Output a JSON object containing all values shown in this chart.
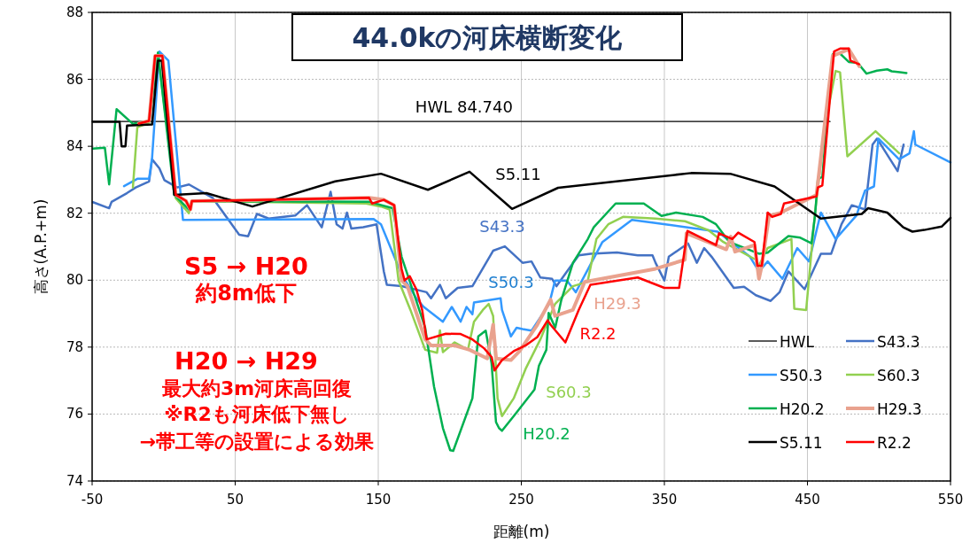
{
  "chart_data": {
    "type": "line",
    "title": "44.0kの河床横断変化",
    "xlabel": "距離(m)",
    "ylabel": "高さ(A.P.+m)",
    "xlim": [
      -50,
      550
    ],
    "xticks": [
      -50,
      50,
      150,
      250,
      350,
      450,
      550
    ],
    "ylim": [
      74,
      88
    ],
    "yticks": [
      74,
      76,
      78,
      80,
      82,
      84,
      86,
      88
    ],
    "grid": true,
    "legend": "bottom right",
    "annotations": [
      {
        "text": "HWL 84.740",
        "x": 210,
        "y": 84.74
      },
      "S5 → H20",
      "約8m低下",
      "H20 → H29",
      "最大約3m河床高回復",
      "※R2も河床低下無し",
      "→帯工等の設置による効果"
    ],
    "series": [
      {
        "name": "HWL",
        "color": "#000000",
        "x": [
          -50,
          465.8
        ],
        "values": [
          84.74,
          84.74
        ]
      },
      {
        "name": "S43.3",
        "color": "#4472c4",
        "x": [
          -49.4,
          -38.1,
          -36.4,
          -25.7,
          -19.5,
          -10.2,
          -8.1,
          -3,
          0.5,
          9.5,
          17.7,
          34.2,
          52.8,
          59,
          65.2,
          73.4,
          92,
          100.2,
          110.5,
          116.7,
          120.9,
          125,
          128.1,
          131.2,
          139.5,
          148.8,
          153.9,
          156,
          166.3,
          183.8,
          186.9,
          193.1,
          197.2,
          205.5,
          215.8,
          230.3,
          238.5,
          250.9,
          257.1,
          263.3,
          271.5,
          274.6,
          281.9,
          290.1,
          298.4,
          316.9,
          331.4,
          341.7,
          343.8,
          350,
          353.1,
          366.5,
          372.7,
          377.8,
          383,
          398.5,
          405.7,
          413.9,
          424.3,
          430.5,
          436.7,
          448,
          459.4,
          466.6,
          473.8,
          481,
          490.3,
          495.5,
          498.6,
          513,
          517.2
        ],
        "values": [
          82.33,
          82.15,
          82.34,
          82.6,
          82.77,
          82.95,
          83.61,
          83.34,
          82.99,
          82.77,
          82.86,
          82.46,
          81.36,
          81.31,
          81.98,
          81.84,
          81.93,
          82.24,
          81.58,
          82.64,
          81.67,
          81.54,
          82.02,
          81.54,
          81.58,
          81.67,
          80.26,
          79.86,
          79.82,
          79.64,
          79.46,
          79.86,
          79.46,
          79.77,
          79.82,
          80.88,
          81.01,
          80.52,
          80.56,
          80.08,
          80.04,
          79.82,
          80.26,
          80.74,
          80.79,
          80.83,
          80.74,
          80.74,
          80.52,
          79.99,
          80.7,
          81.1,
          80.52,
          80.96,
          80.7,
          79.77,
          79.8,
          79.55,
          79.38,
          79.64,
          80.26,
          79.73,
          80.79,
          80.79,
          81.67,
          82.24,
          82.11,
          84.05,
          84.23,
          83.26,
          84.05
        ]
      },
      {
        "name": "S50.3",
        "color": "#3399ff",
        "x": [
          -27.7,
          -18.4,
          -10.2,
          -8.1,
          -3,
          3.3,
          13.5,
          146.6,
          151.9,
          166.3,
          176.6,
          181.8,
          195.2,
          201.4,
          207.6,
          211.7,
          215.8,
          216.9,
          235.5,
          236.5,
          242.7,
          246.7,
          250.9,
          257.1,
          269.5,
          273.6,
          281.9,
          288.1,
          306.7,
          327.3,
          343.8,
          387.2,
          409.8,
          416.1,
          422.2,
          432.5,
          442.9,
          451.1,
          459.4,
          469.7,
          484.2,
          490.3,
          496.5,
          499.6,
          514.1,
          521.3,
          524.4,
          525.4,
          550
        ],
        "values": [
          82.81,
          83.03,
          83.03,
          83.65,
          86.83,
          86.56,
          81.8,
          81.83,
          81.67,
          80.17,
          79.46,
          79.2,
          78.76,
          79.2,
          78.76,
          79.2,
          78.98,
          79.33,
          79.46,
          79.11,
          78.32,
          78.58,
          78.54,
          78.49,
          79.29,
          79.99,
          79.99,
          79.64,
          81.14,
          81.8,
          81.71,
          81.45,
          80.7,
          80.26,
          80.56,
          80.04,
          80.96,
          80.56,
          82.02,
          81.23,
          81.93,
          82.68,
          82.8,
          84.23,
          83.61,
          83.79,
          84.45,
          84.05,
          83.52
        ]
      },
      {
        "name": "S60.3",
        "color": "#92d050",
        "x": [
          -21.5,
          -18.4,
          -10.2,
          -4,
          8.4,
          17.6,
          19.7,
          141.5,
          151.9,
          158,
          164.2,
          172.5,
          182.8,
          191.1,
          193.1,
          195.2,
          203.4,
          212.7,
          216.9,
          223.1,
          227.2,
          230.3,
          233.4,
          236.5,
          244.7,
          253,
          263.3,
          273.6,
          286,
          296.3,
          302.5,
          310.8,
          321.1,
          343.8,
          364.4,
          380.9,
          391.2,
          413.9,
          416,
          422.2,
          438.8,
          440.8,
          449.1,
          455.3,
          462.5,
          469.7,
          472.8,
          477.9,
          497.6,
          514.2
        ],
        "values": [
          82.77,
          84.57,
          84.7,
          86.76,
          82.45,
          82.0,
          82.36,
          82.29,
          82.2,
          82.11,
          79.99,
          79.11,
          77.92,
          77.83,
          78.5,
          77.85,
          78.14,
          77.92,
          78.76,
          79.11,
          79.29,
          78.93,
          76.47,
          75.94,
          76.47,
          77.35,
          78.23,
          79.29,
          79.82,
          79.95,
          81.23,
          81.67,
          81.89,
          81.84,
          81.76,
          81.49,
          81.14,
          80.61,
          80.43,
          80.96,
          81.23,
          79.15,
          79.11,
          82.02,
          84.67,
          86.25,
          86.21,
          83.7,
          84.45,
          83.79
        ]
      },
      {
        "name": "H20.2",
        "color": "#00b050",
        "x": [
          -49.4,
          -41.1,
          -38.1,
          -32.9,
          -21.5,
          -10.2,
          -4,
          7.4,
          17.6,
          19.7,
          143.6,
          160,
          166.3,
          182.8,
          189,
          195.2,
          200.3,
          202.4,
          215.8,
          219.9,
          225.1,
          229.2,
          232.3,
          234.4,
          236.5,
          244.7,
          259.2,
          262.3,
          267.5,
          269.1,
          273.7,
          277.8,
          286.1,
          296.5,
          300.6,
          315.9,
          335.6,
          348,
          358.2,
          376.8,
          386.1,
          395.4,
          416.1,
          422.2,
          436.7,
          445,
          452.8,
          455.3,
          457.3,
          460.4,
          467.6,
          472.8,
          478.9,
          485.1,
          491.3,
          498.6,
          505.8,
          508.9,
          519.2
        ],
        "values": [
          83.93,
          83.96,
          82.86,
          85.11,
          84.67,
          84.76,
          86.8,
          82.55,
          82.11,
          82.36,
          82.34,
          82.15,
          80.7,
          78.58,
          76.82,
          75.58,
          74.92,
          74.9,
          76.47,
          78.32,
          78.49,
          77.52,
          75.76,
          75.58,
          75.5,
          75.94,
          76.73,
          77.44,
          77.92,
          79.02,
          78.58,
          79.38,
          80.52,
          81.23,
          81.58,
          82.29,
          82.29,
          81.92,
          82.02,
          81.89,
          81.67,
          81.14,
          80.79,
          80.82,
          81.32,
          81.27,
          81.1,
          81.93,
          83.03,
          83.08,
          86.74,
          86.77,
          86.52,
          86.49,
          86.17,
          86.26,
          86.3,
          86.24,
          86.19
        ]
      },
      {
        "name": "H29.3",
        "color": "#e9a28e",
        "x": [
          -17.4,
          -10.2,
          -6,
          -0.9,
          8.4,
          15.6,
          18.7,
          19.7,
          143.6,
          153.9,
          161.1,
          166.3,
          170.4,
          182.8,
          186.9,
          203.4,
          213.8,
          226.2,
          230.3,
          232.4,
          242.7,
          248.8,
          261.2,
          270.5,
          273.6,
          286,
          294.3,
          343.8,
          364.3,
          365.4,
          393.3,
          396.4,
          399.4,
          413,
          416.1,
          418.1,
          423.2,
          430.5,
          456.3,
          467.6,
          478.9,
          486.2
        ],
        "values": [
          84.68,
          84.76,
          86.7,
          86.7,
          82.55,
          82.37,
          82.11,
          82.36,
          82.46,
          82.4,
          82.24,
          80.0,
          79.82,
          78.23,
          78.05,
          78.05,
          77.92,
          77.66,
          78.67,
          77.66,
          77.61,
          77.88,
          78.67,
          79.42,
          78.93,
          79.11,
          79.95,
          80.34,
          80.61,
          81.4,
          80.92,
          81.3,
          80.85,
          81.05,
          80.04,
          80.43,
          81.93,
          82.0,
          82.55,
          86.7,
          86.9,
          86.39
        ]
      },
      {
        "name": "S5.11",
        "color": "#000000",
        "x": [
          -49.4,
          -30.8,
          -29.4,
          -26.7,
          -25.6,
          -8.1,
          -4,
          -1.3,
          7.4,
          29.9,
          62,
          119.9,
          151.9,
          184.7,
          213.8,
          243.5,
          275.7,
          368.6,
          396,
          427,
          459.4,
          488,
          492.4,
          505.8,
          517,
          523.4,
          531.6,
          543.8,
          550
        ],
        "values": [
          84.73,
          84.73,
          84.0,
          84.0,
          84.62,
          84.65,
          86.56,
          86.56,
          82.55,
          82.6,
          82.2,
          82.95,
          83.18,
          82.7,
          83.24,
          82.13,
          82.76,
          83.2,
          83.18,
          82.8,
          81.84,
          81.98,
          82.15,
          82.02,
          81.58,
          81.45,
          81.5,
          81.6,
          81.86
        ]
      },
      {
        "name": "R2.2",
        "color": "#ff0000",
        "x": [
          -17.4,
          -10.2,
          -6,
          -0.9,
          8.4,
          15.6,
          18.7,
          19.7,
          143.6,
          145.7,
          153.9,
          161.1,
          166.3,
          168.4,
          172,
          176.6,
          180.7,
          183.8,
          197.2,
          207.6,
          215.8,
          224.1,
          229.3,
          231.3,
          236.5,
          244.7,
          253,
          261.2,
          268.4,
          270.4,
          280.8,
          290.1,
          298.3,
          331.4,
          350,
          360.3,
          366.1,
          386.1,
          388.2,
          397.5,
          401.6,
          413,
          415,
          418.1,
          422.2,
          425.3,
          431.5,
          433.6,
          456.3,
          457.3,
          460.4,
          468.6,
          472.8,
          478.9,
          480,
          486.2
        ],
        "values": [
          84.68,
          84.76,
          86.7,
          86.7,
          82.55,
          82.37,
          82.11,
          82.36,
          82.46,
          82.29,
          82.4,
          82.24,
          80.34,
          79.99,
          80.12,
          79.73,
          79.11,
          78.23,
          78.4,
          78.39,
          78.23,
          77.96,
          77.7,
          77.3,
          77.61,
          77.88,
          78.05,
          78.3,
          78.8,
          78.67,
          78.14,
          79.11,
          79.86,
          80.08,
          79.77,
          79.77,
          81.47,
          81.05,
          81.4,
          81.23,
          81.42,
          81.14,
          80.43,
          80.43,
          82.02,
          81.89,
          81.98,
          82.29,
          82.5,
          82.77,
          82.83,
          86.83,
          86.92,
          86.92,
          86.56,
          86.45
        ]
      }
    ]
  }
}
